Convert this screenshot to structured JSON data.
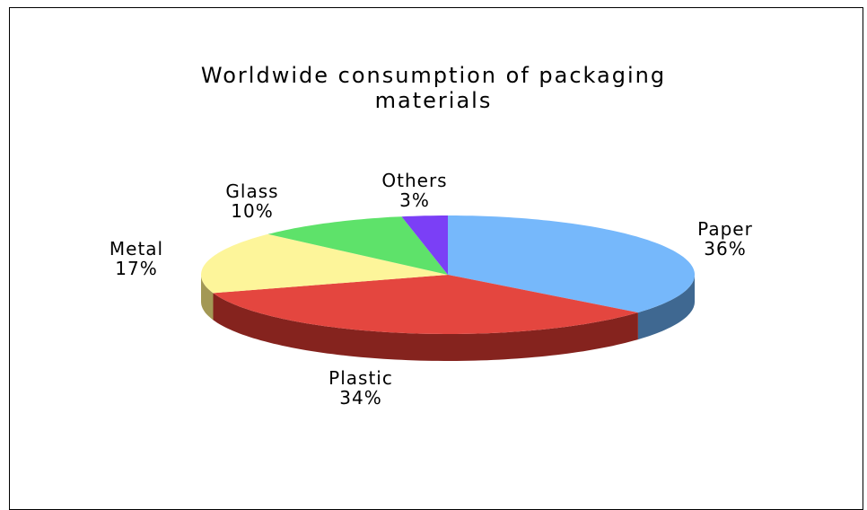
{
  "chart_data": {
    "type": "pie",
    "title_lines": [
      "Worldwide consumption of packaging",
      "materials"
    ],
    "three_d": true,
    "slices": [
      {
        "name": "Paper",
        "value": 36,
        "label": "36%",
        "color": "#76b8fb",
        "side_color": "#3f6891"
      },
      {
        "name": "Plastic",
        "value": 34,
        "label": "34%",
        "color": "#e4463f",
        "side_color": "#85231e"
      },
      {
        "name": "Metal",
        "value": 17,
        "label": "17%",
        "color": "#fdf59a",
        "side_color": "#a39855"
      },
      {
        "name": "Glass",
        "value": 10,
        "label": "10%",
        "color": "#5ee26a",
        "side_color": "#2f7d36"
      },
      {
        "name": "Others",
        "value": 3,
        "label": "3%",
        "color": "#7b3ff6",
        "side_color": "#45208f"
      }
    ]
  }
}
